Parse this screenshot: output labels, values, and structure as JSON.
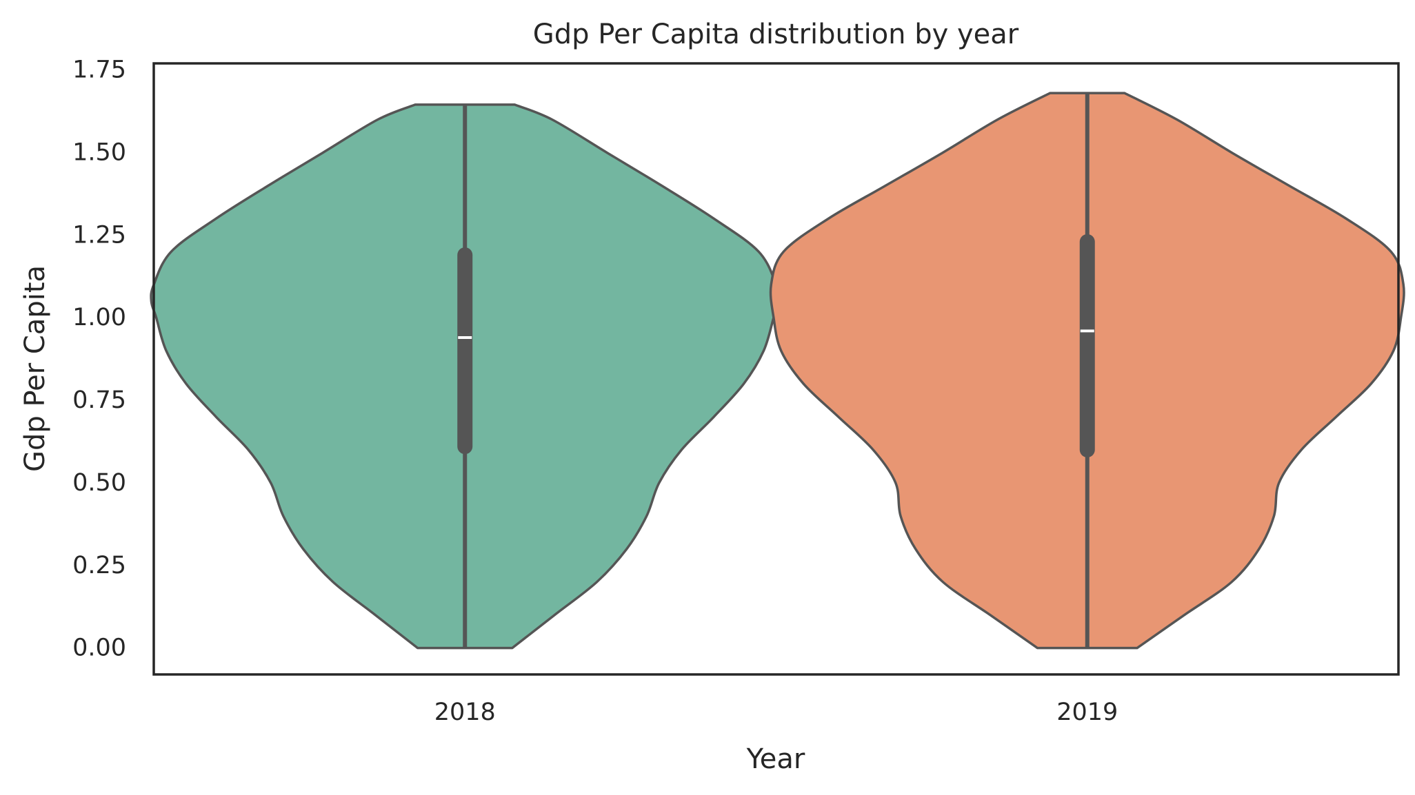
{
  "chart_data": {
    "type": "violin",
    "title": "Gdp Per Capita distribution by year",
    "xlabel": "Year",
    "ylabel": "Gdp Per Capita",
    "ylim": [
      -0.08,
      1.77
    ],
    "yticks": [
      0.0,
      0.25,
      0.5,
      0.75,
      1.0,
      1.25,
      1.5,
      1.75
    ],
    "ytick_labels": [
      "0.00",
      "0.25",
      "0.50",
      "0.75",
      "1.00",
      "1.25",
      "1.50",
      "1.75"
    ],
    "categories": [
      "2018",
      "2019"
    ],
    "grid": false,
    "legend": "none",
    "violins": [
      {
        "category": "2018",
        "color": "#73b6a0",
        "min": 0.0,
        "max": 1.645,
        "q1": 0.61,
        "median": 0.94,
        "q3": 1.19,
        "density": [
          [
            0.0,
            0.19
          ],
          [
            0.1,
            0.36
          ],
          [
            0.2,
            0.53
          ],
          [
            0.3,
            0.65
          ],
          [
            0.4,
            0.73
          ],
          [
            0.5,
            0.78
          ],
          [
            0.6,
            0.87
          ],
          [
            0.7,
            1.0
          ],
          [
            0.8,
            1.12
          ],
          [
            0.9,
            1.2
          ],
          [
            1.0,
            1.24
          ],
          [
            1.05,
            1.26
          ],
          [
            1.1,
            1.25
          ],
          [
            1.2,
            1.18
          ],
          [
            1.3,
            1.0
          ],
          [
            1.4,
            0.79
          ],
          [
            1.5,
            0.57
          ],
          [
            1.6,
            0.35
          ],
          [
            1.645,
            0.2
          ]
        ]
      },
      {
        "category": "2019",
        "color": "#e89673",
        "min": 0.0,
        "max": 1.68,
        "q1": 0.6,
        "median": 0.96,
        "q3": 1.23,
        "density": [
          [
            0.0,
            0.2
          ],
          [
            0.1,
            0.39
          ],
          [
            0.2,
            0.58
          ],
          [
            0.3,
            0.69
          ],
          [
            0.4,
            0.75
          ],
          [
            0.5,
            0.77
          ],
          [
            0.6,
            0.86
          ],
          [
            0.7,
            1.0
          ],
          [
            0.8,
            1.14
          ],
          [
            0.9,
            1.23
          ],
          [
            1.0,
            1.26
          ],
          [
            1.1,
            1.27
          ],
          [
            1.2,
            1.22
          ],
          [
            1.3,
            1.04
          ],
          [
            1.4,
            0.81
          ],
          [
            1.5,
            0.58
          ],
          [
            1.6,
            0.36
          ],
          [
            1.68,
            0.15
          ]
        ]
      }
    ]
  }
}
